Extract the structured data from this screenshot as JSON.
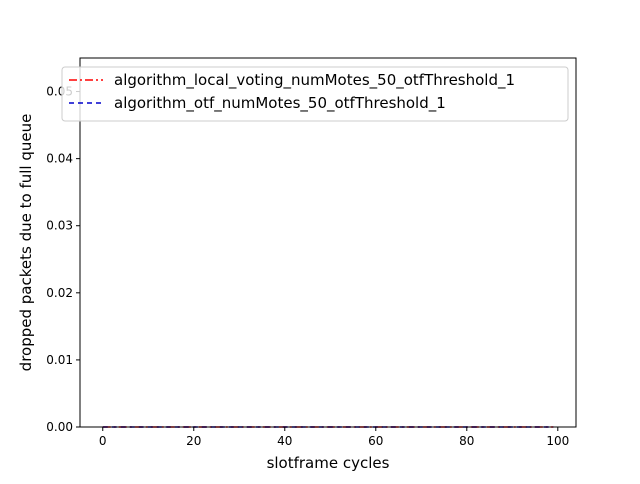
{
  "chart_data": {
    "type": "line",
    "xlabel": "slotframe cycles",
    "ylabel": "dropped packets due to full queue",
    "xlim": [
      -5,
      104
    ],
    "ylim": [
      0.0,
      0.055
    ],
    "x_ticks": [
      0,
      20,
      40,
      60,
      80,
      100
    ],
    "x_tick_labels": [
      "0",
      "20",
      "40",
      "60",
      "80",
      "100"
    ],
    "y_ticks": [
      0.0,
      0.01,
      0.02,
      0.03,
      0.04,
      0.05
    ],
    "y_tick_labels": [
      "0.00",
      "0.01",
      "0.02",
      "0.03",
      "0.04",
      "0.05"
    ],
    "legend_position": "top-right",
    "grid": false,
    "series": [
      {
        "name": "algorithm_local_voting_numMotes_50_otfThreshold_1",
        "color": "#ff0000",
        "style": "dashdot",
        "x": [
          0,
          99
        ],
        "y": [
          0.0,
          0.0
        ]
      },
      {
        "name": "algorithm_otf_numMotes_50_otfThreshold_1",
        "color": "#0000cc",
        "style": "dashed",
        "x": [
          0,
          99
        ],
        "y": [
          0.0,
          0.0
        ]
      }
    ]
  }
}
